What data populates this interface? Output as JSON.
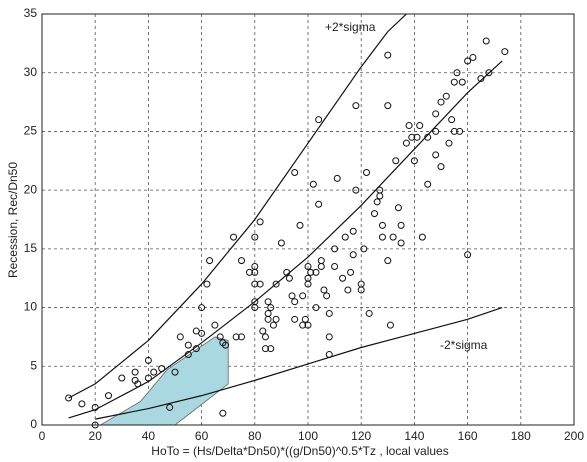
{
  "chart_data": {
    "type": "scatter",
    "xlabel": "HoTo = (Hs/Delta*Dn50)*((g/Dn50)^0.5*Tz , local values",
    "ylabel": "Recession, Rec/Dn50",
    "xlim": [
      0,
      200
    ],
    "xticks": [
      0,
      20,
      40,
      60,
      80,
      100,
      120,
      140,
      160,
      180,
      200
    ],
    "ylim": [
      0,
      35
    ],
    "yticks": [
      0,
      5,
      10,
      15,
      20,
      25,
      30,
      35
    ],
    "grid": true,
    "color": "#111111",
    "region_color": "#a9d8e0",
    "annotations": [
      "+2*sigma",
      "-2*sigma"
    ],
    "points": {
      "x": [
        10,
        15,
        20,
        20,
        25,
        30,
        35,
        35,
        36,
        40,
        40,
        42,
        45,
        48,
        50,
        52,
        55,
        55,
        58,
        58,
        60,
        60,
        62,
        63,
        65,
        67,
        68,
        69,
        68,
        72,
        73,
        75,
        75,
        78,
        80,
        80,
        80,
        80,
        80,
        80,
        82,
        82,
        83,
        84,
        84,
        85,
        85,
        85,
        86,
        87,
        88,
        86,
        88,
        90,
        92,
        93,
        94,
        95,
        95,
        95,
        97,
        98,
        98,
        99,
        100,
        100,
        100,
        100,
        101,
        102,
        103,
        103,
        104,
        104,
        105,
        105,
        106,
        107,
        108,
        108,
        108,
        110,
        110,
        111,
        113,
        114,
        115,
        116,
        117,
        117,
        118,
        118,
        120,
        120,
        121,
        122,
        123,
        125,
        126,
        127,
        127,
        128,
        128,
        130,
        130,
        130,
        131,
        132,
        133,
        134,
        135,
        135,
        137,
        138,
        139,
        140,
        141,
        142,
        143,
        145,
        145,
        148,
        148,
        148,
        150,
        150,
        152,
        153,
        154,
        155,
        155,
        156,
        157,
        158,
        160,
        160,
        162,
        165,
        167,
        168,
        174
      ],
      "y": [
        2.3,
        1.8,
        1.5,
        0,
        2.5,
        4,
        4.5,
        3.8,
        3.5,
        5.5,
        4,
        4.5,
        4.8,
        1.5,
        4.5,
        7.5,
        6.8,
        6,
        8,
        6.5,
        7.8,
        10,
        12,
        14,
        8.5,
        7.5,
        7,
        6.8,
        1,
        16,
        7.5,
        14,
        7.5,
        13,
        13,
        13.5,
        12,
        10.5,
        10,
        16,
        17.3,
        12,
        8,
        7.5,
        6.5,
        10.5,
        9.5,
        9,
        10,
        8.5,
        9,
        6.5,
        12,
        15.5,
        13,
        12.5,
        11,
        10.5,
        9,
        21.5,
        17,
        11,
        8.5,
        9,
        8.5,
        13.5,
        12,
        12.5,
        13,
        20.5,
        13,
        10,
        26,
        18.8,
        14,
        13.5,
        11.5,
        11,
        9.5,
        7.5,
        6,
        15,
        13.5,
        21,
        12.5,
        16,
        11.5,
        13,
        16.5,
        14.5,
        27.2,
        20,
        12,
        11.5,
        15,
        21.5,
        9.5,
        18,
        19,
        20,
        19.5,
        17,
        16,
        27.2,
        31.5,
        14,
        8.5,
        16,
        22.5,
        18.5,
        15.5,
        17,
        24,
        25.5,
        24.5,
        22.5,
        24.5,
        25.5,
        16,
        20.5,
        24.5,
        26.5,
        25,
        23,
        27.5,
        22,
        28,
        24,
        26,
        29.2,
        25,
        30,
        25,
        29.2,
        31,
        14.5,
        31.3,
        29.5,
        32.7,
        30,
        31.8
      ]
    },
    "curves": [
      {
        "x": [
          10,
          20,
          40,
          60,
          80,
          100,
          120,
          140,
          160,
          173
        ],
        "y": [
          0.6,
          1.3,
          3.7,
          7,
          10.5,
          14.3,
          18.7,
          23.5,
          28.3,
          31
        ]
      },
      {
        "x": [
          10,
          20,
          40,
          60,
          80,
          100,
          120,
          130,
          137
        ],
        "y": [
          2.3,
          3.5,
          7.2,
          12,
          17.5,
          24,
          30.5,
          33.5,
          35
        ]
      },
      {
        "x": [
          20,
          40,
          60,
          80,
          100,
          120,
          140,
          160,
          173
        ],
        "y": [
          0.5,
          1.4,
          2.5,
          3.8,
          5.2,
          6.6,
          7.8,
          9,
          10
        ]
      }
    ],
    "region": {
      "x": [
        22,
        37,
        47,
        65,
        70,
        70,
        50
      ],
      "y": [
        0,
        2,
        4.7,
        7.5,
        7.2,
        3.5,
        0
      ]
    }
  }
}
